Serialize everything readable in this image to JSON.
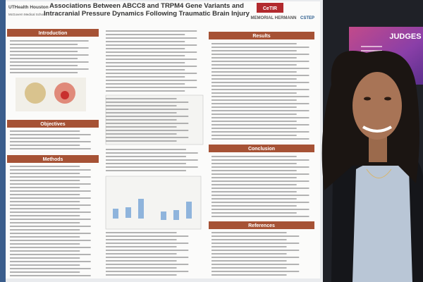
{
  "poster": {
    "logo": "UTHealth Houston",
    "school": "McGovern Medical School",
    "title": "Associations Between ABCC8 and TRPM4 Gene Variants and Intracranial Pressure Dynamics Following Traumatic Brain Injury",
    "sections": {
      "introduction": "Introduction",
      "objectives": "Objectives",
      "methods": "Methods",
      "results": "Results",
      "conclusion": "Conclusion",
      "references": "References"
    },
    "sponsors": [
      "CeTIR",
      "MEMORIAL HERMANN",
      "CSTEP"
    ]
  },
  "screen": {
    "title": "JUDGES"
  }
}
